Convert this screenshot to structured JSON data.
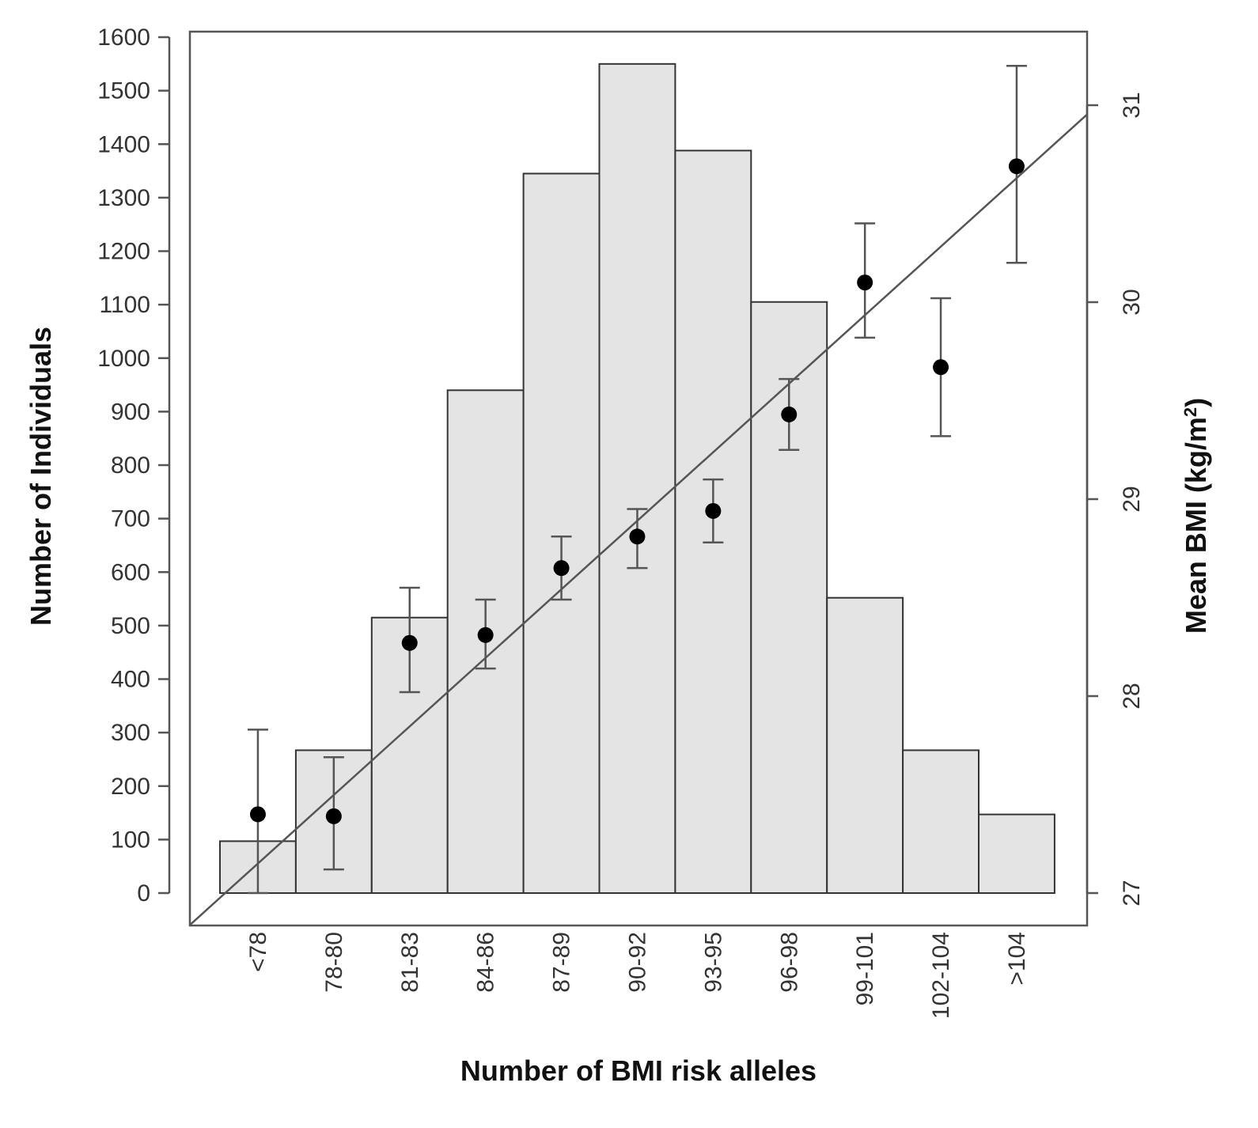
{
  "chart_data": {
    "type": "bar",
    "xlabel": "Number of BMI risk alleles",
    "ylabel": "Number of Individuals",
    "y2label_main": "Mean BMI (kg/m",
    "y2label_sup": "2",
    "y2label_close": ")",
    "categories": [
      "<78",
      "78-80",
      "81-83",
      "84-86",
      "87-89",
      "90-92",
      "93-95",
      "96-98",
      "99-101",
      "102-104",
      ">104"
    ],
    "ylim": [
      0,
      1600
    ],
    "yticks": [
      "0",
      "100",
      "200",
      "300",
      "400",
      "500",
      "600",
      "700",
      "800",
      "900",
      "1000",
      "1100",
      "1200",
      "1300",
      "1400",
      "1500",
      "1600"
    ],
    "y2lim": [
      27,
      31.2
    ],
    "y2ticks": [
      "27",
      "28",
      "29",
      "30",
      "31"
    ],
    "series": [
      {
        "type": "bar",
        "values": [
          97,
          267,
          515,
          940,
          1345,
          1550,
          1388,
          1105,
          552,
          267,
          147
        ]
      },
      {
        "type": "scatter",
        "axis": "right",
        "values": [
          27.4,
          27.39,
          28.27,
          28.31,
          28.65,
          28.81,
          28.94,
          29.43,
          30.1,
          29.67,
          30.69
        ],
        "error_low": [
          27.0,
          27.12,
          28.02,
          28.14,
          28.49,
          28.65,
          28.78,
          29.25,
          29.82,
          29.32,
          30.2
        ],
        "error_high": [
          27.83,
          27.69,
          28.55,
          28.49,
          28.81,
          28.95,
          29.1,
          29.61,
          30.4,
          30.02,
          31.2
        ]
      },
      {
        "type": "line",
        "axis": "right",
        "x": [
          "<78",
          ">104"
        ],
        "values": [
          27.15,
          30.63
        ]
      }
    ],
    "grid": false
  }
}
